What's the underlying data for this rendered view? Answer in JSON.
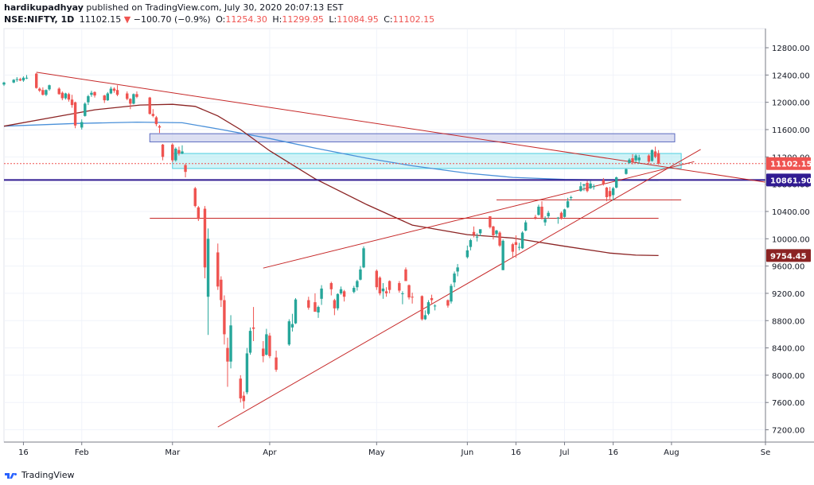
{
  "header": {
    "author": "hardikupadhyay",
    "published": "published on TradingView.com, July 30, 2020 20:07:13 EST",
    "symbol": "NSE:NIFTY, 1D",
    "last": "11102.15",
    "change": "−100.70 (−0.9%)",
    "o_label": "O:",
    "o_value": "11254.30",
    "h_label": "H:",
    "h_value": "11299.95",
    "l_label": "L:",
    "l_value": "11084.95",
    "c_label": "C:",
    "c_value": "11102.15"
  },
  "footer": {
    "brand": "TradingView",
    "logo_icon": "tradingview-logo-icon"
  },
  "colors": {
    "up": "#26a69a",
    "down": "#ef5350",
    "trend": "#c62828",
    "ma_long": "#4a90d9",
    "ma_short": "#8b2323",
    "zone1": "#c5cae9",
    "zone2": "#b2ebf2",
    "hline": "#311b92"
  },
  "chart_data": {
    "type": "candlestick",
    "y_axis_ticks": [
      12800,
      12400,
      12000,
      11600,
      11200,
      10800,
      10400,
      10000,
      9600,
      9200,
      8800,
      8400,
      8000,
      7600,
      7200
    ],
    "y_tick_labels": [
      "12800.00",
      "12400.00",
      "12000.00",
      "11600.00",
      "11200.00",
      "10800.00",
      "10400.00",
      "10000.00",
      "9600.00",
      "9200.00",
      "8800.00",
      "8400.00",
      "8000.00",
      "7600.00",
      "7200.00"
    ],
    "ylim": [
      7020,
      13080
    ],
    "x_labels": [
      {
        "label": "16",
        "date": "2020-01-16"
      },
      {
        "label": "Feb",
        "date": "2020-02-03"
      },
      {
        "label": "Mar",
        "date": "2020-03-02"
      },
      {
        "label": "Apr",
        "date": "2020-04-01"
      },
      {
        "label": "May",
        "date": "2020-05-04"
      },
      {
        "label": "Jun",
        "date": "2020-06-01"
      },
      {
        "label": "16",
        "date": "2020-06-16"
      },
      {
        "label": "Jul",
        "date": "2020-07-01"
      },
      {
        "label": "16",
        "date": "2020-07-16"
      },
      {
        "label": "Aug",
        "date": "2020-08-03"
      },
      {
        "label": "Se",
        "date": "2020-09-01"
      }
    ],
    "xlim": [
      "2020-01-10",
      "2020-09-01"
    ],
    "price_labels": [
      {
        "value": 11102.15,
        "label": "11102.15",
        "color": "#ef5350"
      },
      {
        "value": 10861.9,
        "label": "10861.90",
        "color": "#311b92"
      },
      {
        "value": 9754.45,
        "label": "9754.45",
        "color": "#8b2323"
      }
    ],
    "candles": [
      [
        "2020-01-10",
        12260,
        12300,
        12240,
        12290
      ],
      [
        "2020-01-13",
        12290,
        12340,
        12280,
        12330
      ],
      [
        "2020-01-14",
        12330,
        12370,
        12300,
        12340
      ],
      [
        "2020-01-15",
        12340,
        12360,
        12310,
        12320
      ],
      [
        "2020-01-16",
        12320,
        12380,
        12300,
        12360
      ],
      [
        "2020-01-17",
        12360,
        12400,
        12340,
        12360
      ],
      [
        "2020-01-20",
        12420,
        12430,
        12200,
        12210
      ],
      [
        "2020-01-21",
        12200,
        12220,
        12150,
        12170
      ],
      [
        "2020-01-22",
        12180,
        12220,
        12100,
        12110
      ],
      [
        "2020-01-23",
        12110,
        12190,
        12090,
        12180
      ],
      [
        "2020-01-24",
        12190,
        12260,
        12170,
        12250
      ],
      [
        "2020-01-27",
        12200,
        12220,
        12110,
        12120
      ],
      [
        "2020-01-28",
        12140,
        12160,
        12030,
        12060
      ],
      [
        "2020-01-29",
        12060,
        12140,
        12040,
        12130
      ],
      [
        "2020-01-30",
        12120,
        12140,
        12010,
        12040
      ],
      [
        "2020-01-31",
        12040,
        12110,
        11920,
        11960
      ],
      [
        "2020-02-01",
        12000,
        12010,
        11620,
        11660
      ],
      [
        "2020-02-03",
        11630,
        11750,
        11600,
        11710
      ],
      [
        "2020-02-04",
        11800,
        12000,
        11790,
        11980
      ],
      [
        "2020-02-05",
        12000,
        12110,
        11960,
        12090
      ],
      [
        "2020-02-06",
        12110,
        12170,
        12080,
        12140
      ],
      [
        "2020-02-07",
        12150,
        12160,
        12070,
        12100
      ],
      [
        "2020-02-10",
        12100,
        12110,
        11990,
        12030
      ],
      [
        "2020-02-11",
        12030,
        12150,
        12020,
        12130
      ],
      [
        "2020-02-12",
        12130,
        12230,
        12120,
        12200
      ],
      [
        "2020-02-13",
        12200,
        12220,
        12140,
        12170
      ],
      [
        "2020-02-14",
        12180,
        12250,
        12090,
        12110
      ],
      [
        "2020-02-17",
        12130,
        12160,
        12030,
        12050
      ],
      [
        "2020-02-18",
        12050,
        12060,
        11900,
        11980
      ],
      [
        "2020-02-19",
        11980,
        12130,
        11970,
        12120
      ],
      [
        "2020-02-20",
        12120,
        12160,
        12060,
        12080
      ],
      [
        "2020-02-24",
        12070,
        12080,
        11820,
        11830
      ],
      [
        "2020-02-25",
        11830,
        11900,
        11780,
        11800
      ],
      [
        "2020-02-26",
        11780,
        11800,
        11650,
        11680
      ],
      [
        "2020-02-27",
        11650,
        11670,
        11550,
        11630
      ],
      [
        "2020-02-28",
        11380,
        11390,
        11150,
        11200
      ],
      [
        "2020-03-02",
        11380,
        11400,
        11120,
        11150
      ],
      [
        "2020-03-03",
        11150,
        11340,
        11130,
        11320
      ],
      [
        "2020-03-04",
        11300,
        11350,
        11220,
        11250
      ],
      [
        "2020-03-05",
        11250,
        11370,
        11240,
        11280
      ],
      [
        "2020-03-06",
        11080,
        11100,
        10900,
        10980
      ],
      [
        "2020-03-09",
        10740,
        10760,
        10460,
        10480
      ],
      [
        "2020-03-10",
        10460,
        10480,
        10260,
        10290
      ],
      [
        "2020-03-12",
        10440,
        10480,
        9420,
        9580
      ],
      [
        "2020-03-13",
        9150,
        10150,
        8590,
        10000
      ],
      [
        "2020-03-16",
        9800,
        9930,
        9250,
        9300
      ],
      [
        "2020-03-17",
        9400,
        9450,
        9000,
        9100
      ],
      [
        "2020-03-18",
        9100,
        9170,
        8450,
        8600
      ],
      [
        "2020-03-19",
        8400,
        8550,
        7830,
        8200
      ],
      [
        "2020-03-20",
        8200,
        8880,
        8100,
        8730
      ],
      [
        "2020-03-23",
        7950,
        8000,
        7600,
        7660
      ],
      [
        "2020-03-24",
        7700,
        7760,
        7510,
        7620
      ],
      [
        "2020-03-25",
        7750,
        8400,
        7720,
        8320
      ],
      [
        "2020-03-26",
        8330,
        8700,
        8300,
        8650
      ],
      [
        "2020-03-27",
        8700,
        9000,
        8500,
        8680
      ],
      [
        "2020-03-30",
        8390,
        8500,
        8190,
        8280
      ],
      [
        "2020-03-31",
        8300,
        8680,
        8290,
        8600
      ],
      [
        "2020-04-01",
        8580,
        8620,
        8250,
        8280
      ],
      [
        "2020-04-03",
        8260,
        8360,
        8050,
        8080
      ],
      [
        "2020-04-07",
        8450,
        8820,
        8430,
        8790
      ],
      [
        "2020-04-08",
        8700,
        8900,
        8640,
        8750
      ],
      [
        "2020-04-09",
        8760,
        9130,
        8750,
        9110
      ],
      [
        "2020-04-13",
        9100,
        9150,
        8960,
        8990
      ],
      [
        "2020-04-15",
        9070,
        9200,
        8930,
        8930
      ],
      [
        "2020-04-16",
        8920,
        9020,
        8840,
        9000
      ],
      [
        "2020-04-17",
        9120,
        9320,
        9030,
        9270
      ],
      [
        "2020-04-20",
        9350,
        9370,
        9170,
        9260
      ],
      [
        "2020-04-21",
        9100,
        9120,
        8880,
        8980
      ],
      [
        "2020-04-22",
        8980,
        9200,
        8950,
        9190
      ],
      [
        "2020-04-23",
        9200,
        9300,
        9180,
        9260
      ],
      [
        "2020-04-24",
        9230,
        9250,
        9080,
        9150
      ],
      [
        "2020-04-27",
        9220,
        9310,
        9200,
        9280
      ],
      [
        "2020-04-28",
        9290,
        9400,
        9240,
        9380
      ],
      [
        "2020-04-29",
        9400,
        9600,
        9390,
        9550
      ],
      [
        "2020-04-30",
        9580,
        9890,
        9570,
        9860
      ],
      [
        "2020-05-04",
        9530,
        9550,
        9250,
        9290
      ],
      [
        "2020-05-05",
        9430,
        9450,
        9170,
        9200
      ],
      [
        "2020-05-06",
        9230,
        9350,
        9120,
        9270
      ],
      [
        "2020-05-07",
        9230,
        9290,
        9150,
        9200
      ],
      [
        "2020-05-08",
        9380,
        9390,
        9200,
        9250
      ],
      [
        "2020-05-11",
        9350,
        9380,
        9210,
        9240
      ],
      [
        "2020-05-12",
        9200,
        9230,
        9040,
        9200
      ],
      [
        "2020-05-13",
        9550,
        9580,
        9380,
        9380
      ],
      [
        "2020-05-14",
        9320,
        9330,
        9110,
        9140
      ],
      [
        "2020-05-15",
        9150,
        9210,
        9050,
        9140
      ],
      [
        "2020-05-18",
        9160,
        9170,
        8800,
        8820
      ],
      [
        "2020-05-19",
        8820,
        8950,
        8810,
        8880
      ],
      [
        "2020-05-20",
        8900,
        9100,
        8880,
        9070
      ],
      [
        "2020-05-21",
        9130,
        9180,
        9050,
        9100
      ],
      [
        "2020-05-22",
        9020,
        9040,
        8950,
        9020
      ],
      [
        "2020-05-26",
        9100,
        9110,
        8990,
        9020
      ],
      [
        "2020-05-27",
        9080,
        9340,
        9050,
        9310
      ],
      [
        "2020-05-28",
        9360,
        9520,
        9290,
        9490
      ],
      [
        "2020-05-29",
        9520,
        9630,
        9450,
        9580
      ],
      [
        "2020-06-01",
        9730,
        9900,
        9710,
        9830
      ],
      [
        "2020-06-02",
        9880,
        10000,
        9830,
        9980
      ],
      [
        "2020-06-03",
        10100,
        10180,
        10020,
        10060
      ],
      [
        "2020-06-04",
        10030,
        10080,
        9960,
        10030
      ],
      [
        "2020-06-05",
        10080,
        10130,
        10040,
        10140
      ],
      [
        "2020-06-08",
        10330,
        10330,
        10150,
        10170
      ],
      [
        "2020-06-09",
        10180,
        10190,
        9990,
        10050
      ],
      [
        "2020-06-10",
        10070,
        10130,
        10030,
        10120
      ],
      [
        "2020-06-11",
        10090,
        10110,
        9880,
        9900
      ],
      [
        "2020-06-12",
        9540,
        9990,
        9540,
        9970
      ],
      [
        "2020-06-15",
        9920,
        9940,
        9730,
        9810
      ],
      [
        "2020-06-16",
        9950,
        10050,
        9720,
        9910
      ],
      [
        "2020-06-17",
        9880,
        9940,
        9830,
        9880
      ],
      [
        "2020-06-18",
        9860,
        10110,
        9850,
        10090
      ],
      [
        "2020-06-19",
        10120,
        10270,
        10110,
        10240
      ],
      [
        "2020-06-22",
        10320,
        10350,
        10280,
        10310
      ],
      [
        "2020-06-23",
        10350,
        10500,
        10340,
        10470
      ],
      [
        "2020-06-24",
        10470,
        10550,
        10280,
        10310
      ],
      [
        "2020-06-25",
        10240,
        10330,
        10190,
        10290
      ],
      [
        "2020-06-26",
        10330,
        10410,
        10300,
        10380
      ],
      [
        "2020-06-29",
        10310,
        10320,
        10220,
        10310
      ],
      [
        "2020-06-30",
        10380,
        10400,
        10280,
        10300
      ],
      [
        "2020-07-01",
        10320,
        10440,
        10310,
        10430
      ],
      [
        "2020-07-02",
        10460,
        10600,
        10450,
        10550
      ],
      [
        "2020-07-03",
        10600,
        10630,
        10560,
        10610
      ],
      [
        "2020-07-06",
        10700,
        10830,
        10690,
        10770
      ],
      [
        "2020-07-07",
        10780,
        10800,
        10700,
        10800
      ],
      [
        "2020-07-08",
        10820,
        10850,
        10680,
        10700
      ],
      [
        "2020-07-09",
        10740,
        10850,
        10730,
        10810
      ],
      [
        "2020-07-10",
        10760,
        10800,
        10720,
        10770
      ],
      [
        "2020-07-13",
        10860,
        10890,
        10780,
        10800
      ],
      [
        "2020-07-14",
        10750,
        10760,
        10550,
        10610
      ],
      [
        "2020-07-15",
        10700,
        10760,
        10580,
        10620
      ],
      [
        "2020-07-16",
        10640,
        10760,
        10560,
        10740
      ],
      [
        "2020-07-17",
        10750,
        10910,
        10740,
        10900
      ],
      [
        "2020-07-20",
        10950,
        11030,
        10940,
        11020
      ],
      [
        "2020-07-21",
        11110,
        11180,
        11100,
        11160
      ],
      [
        "2020-07-22",
        11180,
        11240,
        11090,
        11130
      ],
      [
        "2020-07-23",
        11150,
        11240,
        11120,
        11220
      ],
      [
        "2020-07-24",
        11150,
        11230,
        11100,
        11190
      ],
      [
        "2020-07-27",
        11220,
        11240,
        11100,
        11130
      ],
      [
        "2020-07-28",
        11140,
        11310,
        11130,
        11300
      ],
      [
        "2020-07-29",
        11280,
        11350,
        11180,
        11200
      ],
      [
        "2020-07-30",
        11254.3,
        11299.95,
        11084.95,
        11102.15
      ]
    ],
    "zones": [
      {
        "from": 11420,
        "to": 11540,
        "start": "2020-02-24",
        "end": "2020-08-04",
        "color": "#c5cae9",
        "edge": "#5c6bc0"
      },
      {
        "from": 11030,
        "to": 11250,
        "start": "2020-03-02",
        "end": "2020-08-06",
        "color": "#b2ebf2",
        "edge": "#4dd0e1"
      }
    ],
    "h_lines": [
      {
        "value": 10861.9,
        "start": "2020-01-01",
        "end": "2020-09-30",
        "color": "#311b92",
        "width": 2
      },
      {
        "value": 10300,
        "start": "2020-02-24",
        "end": "2020-07-30",
        "color": "#c62828",
        "width": 1
      },
      {
        "value": 10570,
        "start": "2020-06-10",
        "end": "2020-08-06",
        "color": "#c62828",
        "width": 1
      }
    ],
    "ref_line": {
      "value": 11102.15,
      "color": "#ef5350"
    },
    "trend_lines": [
      {
        "x1": "2020-01-20",
        "y1": 12440,
        "x2": "2020-09-01",
        "y2": 10830
      },
      {
        "x1": "2020-03-16",
        "y1": 7240,
        "x2": "2020-08-12",
        "y2": 11310
      },
      {
        "x1": "2020-03-30",
        "y1": 9570,
        "x2": "2020-08-10",
        "y2": 11130
      }
    ],
    "ma_long": [
      [
        "2020-01-10",
        11650
      ],
      [
        "2020-02-01",
        11690
      ],
      [
        "2020-02-20",
        11710
      ],
      [
        "2020-03-05",
        11700
      ],
      [
        "2020-03-16",
        11610
      ],
      [
        "2020-04-01",
        11470
      ],
      [
        "2020-04-15",
        11330
      ],
      [
        "2020-05-01",
        11180
      ],
      [
        "2020-05-15",
        11070
      ],
      [
        "2020-06-01",
        10960
      ],
      [
        "2020-06-15",
        10900
      ],
      [
        "2020-07-01",
        10870
      ],
      [
        "2020-07-15",
        10860
      ],
      [
        "2020-07-30",
        10858
      ]
    ],
    "ma_short": [
      [
        "2020-01-10",
        11650
      ],
      [
        "2020-01-24",
        11770
      ],
      [
        "2020-02-07",
        11890
      ],
      [
        "2020-02-21",
        11960
      ],
      [
        "2020-03-02",
        11970
      ],
      [
        "2020-03-09",
        11940
      ],
      [
        "2020-03-16",
        11800
      ],
      [
        "2020-03-23",
        11600
      ],
      [
        "2020-04-01",
        11290
      ],
      [
        "2020-04-15",
        10880
      ],
      [
        "2020-05-01",
        10500
      ],
      [
        "2020-05-15",
        10200
      ],
      [
        "2020-06-01",
        10060
      ],
      [
        "2020-06-15",
        10010
      ],
      [
        "2020-07-01",
        9890
      ],
      [
        "2020-07-15",
        9790
      ],
      [
        "2020-07-23",
        9760
      ],
      [
        "2020-07-30",
        9754
      ]
    ]
  }
}
